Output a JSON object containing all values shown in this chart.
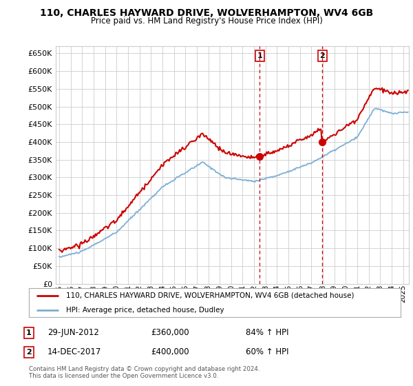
{
  "title": "110, CHARLES HAYWARD DRIVE, WOLVERHAMPTON, WV4 6GB",
  "subtitle": "Price paid vs. HM Land Registry's House Price Index (HPI)",
  "ylim": [
    0,
    670000
  ],
  "yticks": [
    0,
    50000,
    100000,
    150000,
    200000,
    250000,
    300000,
    350000,
    400000,
    450000,
    500000,
    550000,
    600000,
    650000
  ],
  "xlim_start": 1994.7,
  "xlim_end": 2025.5,
  "transaction1": {
    "date_num": 2012.5,
    "price": 360000,
    "label": "1"
  },
  "transaction2": {
    "date_num": 2017.95,
    "price": 400000,
    "label": "2"
  },
  "legend_entry1": "110, CHARLES HAYWARD DRIVE, WOLVERHAMPTON, WV4 6GB (detached house)",
  "legend_entry2": "HPI: Average price, detached house, Dudley",
  "annotation1_date": "29-JUN-2012",
  "annotation1_price": "£360,000",
  "annotation1_hpi": "84% ↑ HPI",
  "annotation2_date": "14-DEC-2017",
  "annotation2_price": "£400,000",
  "annotation2_hpi": "60% ↑ HPI",
  "footer": "Contains HM Land Registry data © Crown copyright and database right 2024.\nThis data is licensed under the Open Government Licence v3.0.",
  "house_color": "#cc0000",
  "hpi_color": "#7bafd4",
  "background_color": "#ffffff",
  "plot_bg_color": "#ffffff",
  "grid_color": "#cccccc"
}
